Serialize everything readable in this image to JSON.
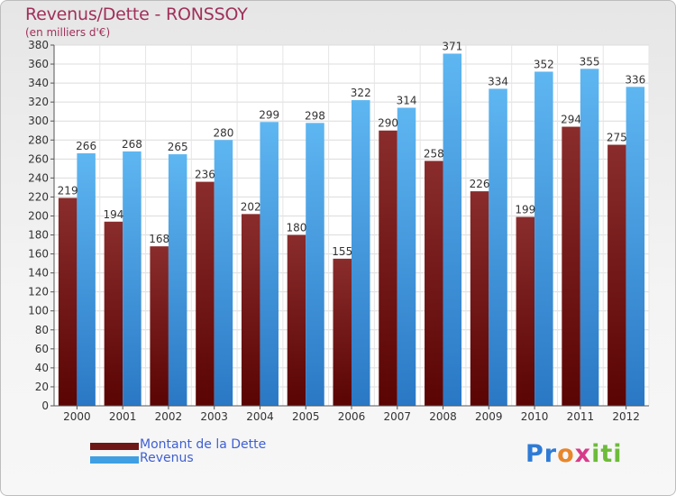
{
  "header": {
    "title": "Revenus/Dette - RONSSOY",
    "subtitle": "(en milliers d'€)"
  },
  "colors": {
    "dette": "#6e1717",
    "revenus": "#3f9fe2",
    "title": "#a0305a",
    "legend_text": "#3f5fd1"
  },
  "legend": {
    "items": [
      {
        "label": "Montant de la Dette",
        "color": "#6e1717"
      },
      {
        "label": "Revenus",
        "color": "#3f9fe2"
      }
    ]
  },
  "logo": {
    "text": "Proxiti",
    "parts": [
      "Pr",
      "o",
      "x",
      "iti"
    ]
  },
  "chart_data": {
    "type": "bar",
    "categories": [
      "2000",
      "2001",
      "2002",
      "2003",
      "2004",
      "2005",
      "2006",
      "2007",
      "2008",
      "2009",
      "2010",
      "2011",
      "2012"
    ],
    "series": [
      {
        "name": "Montant de la Dette",
        "values": [
          219,
          194,
          168,
          236,
          202,
          180,
          155,
          290,
          258,
          226,
          199,
          294,
          275
        ]
      },
      {
        "name": "Revenus",
        "values": [
          266,
          268,
          265,
          280,
          299,
          298,
          322,
          314,
          371,
          334,
          352,
          355,
          336
        ]
      }
    ],
    "ylim": [
      0,
      380
    ],
    "yticks": [
      0,
      20,
      40,
      60,
      80,
      100,
      120,
      140,
      160,
      180,
      200,
      220,
      240,
      260,
      280,
      300,
      320,
      340,
      360,
      380
    ],
    "grid": true,
    "legend_position": "bottom-left"
  }
}
